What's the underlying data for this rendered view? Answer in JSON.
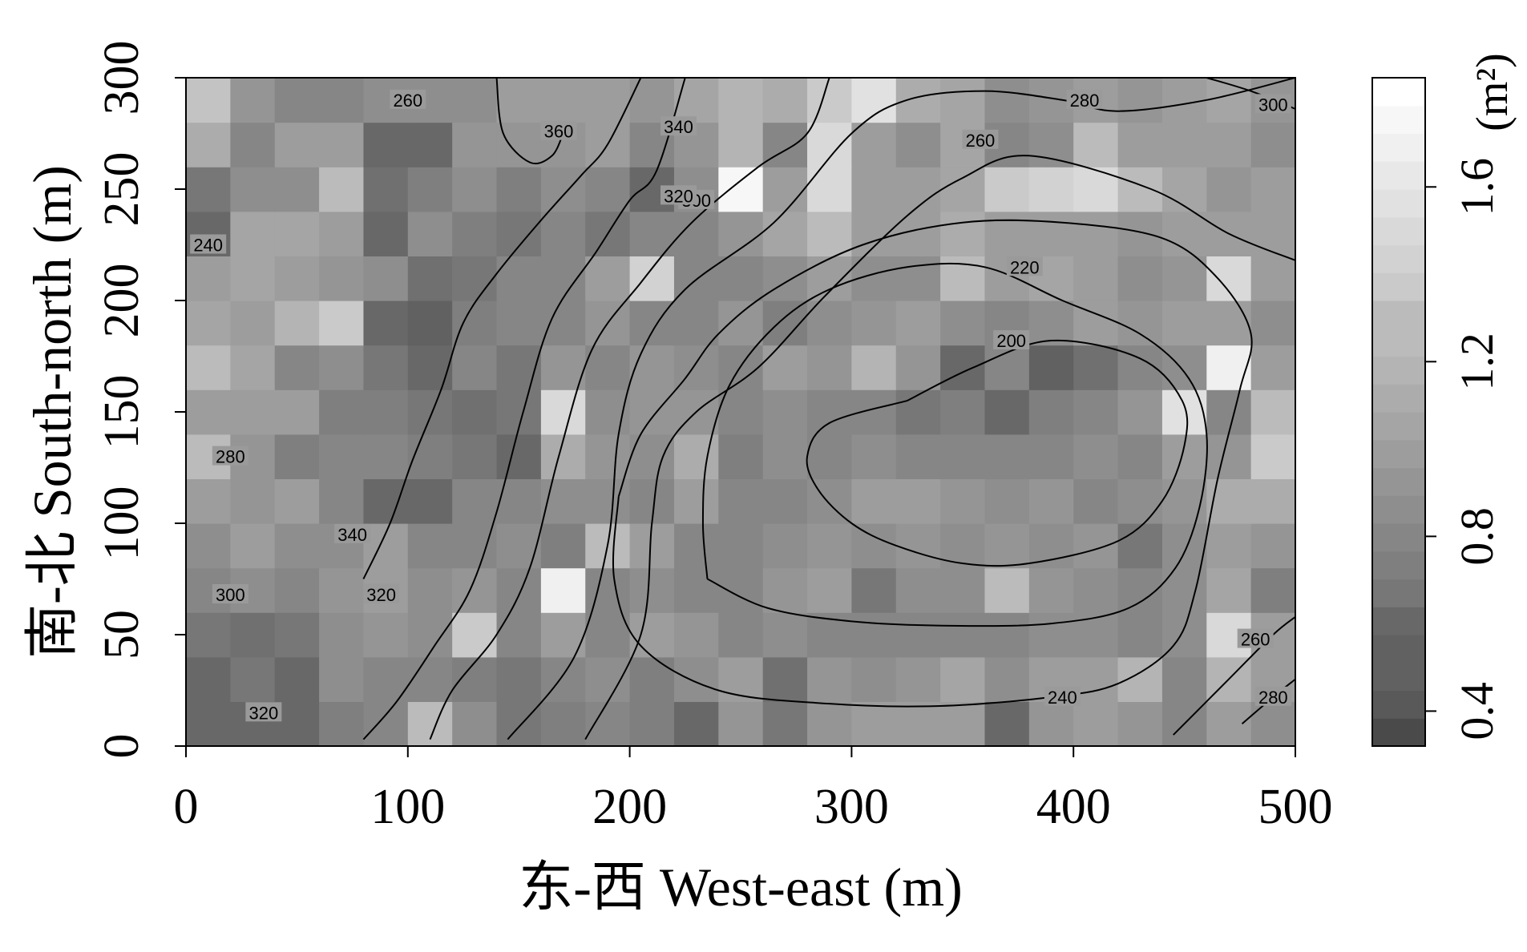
{
  "chart_data": {
    "type": "heatmap",
    "title": "",
    "xlabel": "东-西  West-east (m)",
    "ylabel": "南-北  South-north (m)",
    "xlim": [
      0,
      500
    ],
    "ylim": [
      0,
      300
    ],
    "x_ticks": [
      0,
      100,
      200,
      300,
      400,
      500
    ],
    "y_ticks": [
      0,
      50,
      100,
      150,
      200,
      250,
      300
    ],
    "cell_size_m": 20,
    "colorbar": {
      "label": "(m²)",
      "range": [
        0.32,
        1.85
      ],
      "ticks": [
        0.4,
        0.8,
        1.2,
        1.6
      ],
      "color_low": "#4a4a4a",
      "color_high": "#ffffff"
    },
    "grid_rows_south_to_north": [
      [
        0.6,
        0.55,
        0.55,
        0.75,
        0.8,
        1.3,
        0.9,
        0.7,
        0.75,
        0.8,
        0.75,
        0.6,
        0.95,
        0.7,
        0.95,
        1.05,
        1.0,
        1.0,
        0.55,
        0.95,
        1.0,
        0.95,
        0.85,
        1.0,
        0.9
      ],
      [
        0.55,
        0.7,
        0.55,
        0.9,
        0.8,
        0.85,
        0.75,
        0.7,
        0.8,
        0.9,
        0.75,
        0.9,
        1.0,
        0.65,
        0.95,
        0.9,
        0.95,
        1.1,
        0.9,
        1.05,
        1.05,
        1.2,
        0.85,
        1.2,
        1.0
      ],
      [
        0.7,
        0.65,
        0.7,
        0.9,
        0.95,
        0.9,
        1.4,
        0.85,
        1.0,
        0.85,
        1.05,
        0.95,
        0.8,
        0.9,
        0.8,
        0.85,
        0.8,
        0.85,
        0.85,
        0.9,
        0.9,
        0.8,
        0.9,
        1.5,
        1.05
      ],
      [
        0.85,
        0.9,
        0.85,
        0.95,
        1.0,
        0.9,
        0.95,
        0.8,
        1.75,
        0.85,
        0.9,
        0.85,
        0.8,
        0.95,
        1.0,
        0.7,
        0.9,
        0.9,
        1.3,
        0.95,
        0.9,
        0.85,
        0.9,
        1.1,
        0.75
      ],
      [
        0.9,
        1.0,
        0.9,
        0.9,
        1.0,
        0.85,
        0.85,
        0.9,
        0.75,
        1.25,
        1.0,
        0.85,
        0.8,
        0.9,
        0.95,
        0.9,
        0.95,
        0.9,
        0.95,
        0.9,
        0.95,
        0.7,
        0.9,
        1.0,
        0.95
      ],
      [
        1.0,
        0.95,
        1.0,
        0.8,
        0.55,
        0.6,
        0.8,
        0.85,
        0.9,
        0.9,
        0.85,
        1.0,
        0.85,
        0.8,
        0.9,
        1.05,
        1.0,
        0.95,
        0.9,
        0.95,
        0.85,
        0.9,
        0.95,
        1.15,
        1.15
      ],
      [
        1.25,
        0.95,
        0.75,
        0.8,
        0.8,
        0.75,
        0.7,
        0.6,
        1.15,
        0.95,
        0.9,
        1.15,
        0.75,
        0.9,
        0.85,
        0.9,
        0.8,
        0.85,
        0.8,
        0.8,
        0.9,
        0.85,
        1.05,
        0.95,
        1.4
      ],
      [
        1.0,
        1.0,
        1.05,
        0.75,
        0.75,
        0.7,
        0.65,
        0.7,
        1.55,
        0.9,
        0.95,
        0.95,
        0.85,
        0.9,
        0.85,
        0.8,
        0.7,
        0.75,
        0.55,
        0.75,
        0.85,
        0.95,
        1.6,
        0.85,
        1.25
      ],
      [
        1.3,
        1.1,
        0.85,
        0.9,
        0.7,
        0.6,
        0.85,
        0.7,
        0.95,
        0.85,
        0.95,
        0.9,
        0.85,
        1.0,
        0.95,
        1.2,
        0.95,
        0.6,
        0.8,
        0.5,
        0.65,
        0.85,
        0.9,
        1.7,
        1.0
      ],
      [
        1.1,
        1.0,
        1.2,
        1.4,
        0.6,
        0.5,
        0.75,
        0.8,
        0.85,
        0.95,
        0.85,
        0.8,
        0.95,
        0.75,
        0.9,
        0.95,
        1.0,
        0.9,
        0.85,
        0.9,
        1.05,
        0.95,
        1.0,
        1.05,
        0.9
      ],
      [
        1.05,
        1.1,
        1.0,
        0.95,
        0.9,
        0.65,
        0.7,
        0.8,
        0.85,
        1.05,
        1.45,
        0.85,
        0.85,
        0.9,
        1.0,
        0.9,
        0.9,
        1.25,
        1.05,
        1.1,
        1.0,
        0.9,
        0.95,
        1.55,
        1.0
      ],
      [
        0.6,
        1.1,
        1.1,
        1.05,
        0.6,
        0.9,
        0.75,
        0.7,
        0.85,
        0.7,
        0.8,
        0.8,
        0.95,
        1.1,
        1.25,
        1.05,
        1.05,
        1.15,
        1.0,
        1.0,
        1.0,
        0.95,
        1.0,
        1.0,
        1.05
      ],
      [
        0.7,
        0.9,
        0.9,
        1.3,
        0.65,
        0.75,
        0.9,
        0.75,
        0.9,
        0.8,
        0.6,
        0.9,
        1.8,
        1.05,
        1.55,
        1.0,
        1.0,
        1.1,
        1.4,
        1.45,
        1.5,
        1.25,
        1.1,
        0.95,
        1.05
      ],
      [
        1.15,
        0.8,
        1.0,
        1.0,
        0.6,
        0.6,
        0.95,
        0.95,
        0.95,
        1.0,
        0.85,
        0.95,
        1.2,
        0.85,
        1.55,
        1.05,
        0.9,
        1.1,
        0.85,
        0.9,
        1.3,
        1.0,
        1.05,
        1.0,
        0.9
      ],
      [
        1.35,
        0.95,
        0.85,
        0.85,
        0.9,
        0.9,
        0.9,
        1.05,
        1.0,
        1.05,
        0.95,
        1.1,
        1.2,
        1.15,
        1.4,
        1.6,
        1.15,
        1.1,
        0.9,
        0.95,
        1.05,
        0.95,
        1.0,
        1.1,
        0.95
      ],
      [
        1.5,
        0.85,
        0.85,
        0.9,
        1.3,
        1.25,
        0.9,
        0.85,
        0.9,
        1.2,
        0.9,
        0.85,
        1.1,
        0.9,
        0.9,
        1.8,
        1.1,
        0.9,
        0.95,
        1.0,
        1.05,
        0.9,
        1.1,
        0.95,
        1.0
      ]
    ],
    "contours": [
      {
        "level": 200,
        "label": "200",
        "points": [
          [
            325,
            155
          ],
          [
            355,
            170
          ],
          [
            390,
            182
          ],
          [
            430,
            174
          ],
          [
            449,
            155
          ],
          [
            450,
            135
          ],
          [
            440,
            110
          ],
          [
            420,
            92
          ],
          [
            380,
            82
          ],
          [
            350,
            82
          ],
          [
            320,
            90
          ],
          [
            300,
            100
          ],
          [
            285,
            115
          ],
          [
            280,
            130
          ],
          [
            290,
            145
          ],
          [
            325,
            155
          ]
        ],
        "labels": [
          [
            372,
            182
          ]
        ]
      },
      {
        "level": 220,
        "label": "220",
        "points": [
          [
            235,
            75
          ],
          [
            262,
            62
          ],
          [
            300,
            56
          ],
          [
            345,
            54
          ],
          [
            390,
            55
          ],
          [
            425,
            62
          ],
          [
            446,
            80
          ],
          [
            457,
            108
          ],
          [
            460,
            140
          ],
          [
            452,
            165
          ],
          [
            430,
            185
          ],
          [
            395,
            200
          ],
          [
            360,
            215
          ],
          [
            325,
            215
          ],
          [
            290,
            205
          ],
          [
            265,
            188
          ],
          [
            245,
            162
          ],
          [
            235,
            130
          ],
          [
            233,
            100
          ],
          [
            235,
            75
          ]
        ],
        "labels": [
          [
            378,
            215
          ]
        ]
      },
      {
        "level": 240,
        "label": "240",
        "points": [
          [
            195,
            112
          ],
          [
            193,
            75
          ],
          [
            205,
            45
          ],
          [
            240,
            25
          ],
          [
            290,
            19
          ],
          [
            340,
            18
          ],
          [
            390,
            22
          ],
          [
            420,
            28
          ],
          [
            445,
            45
          ],
          [
            455,
            70
          ],
          [
            465,
            120
          ],
          [
            475,
            160
          ],
          [
            480,
            185
          ],
          [
            465,
            210
          ],
          [
            440,
            228
          ],
          [
            395,
            235
          ],
          [
            350,
            235
          ],
          [
            305,
            225
          ],
          [
            265,
            205
          ],
          [
            240,
            185
          ],
          [
            225,
            165
          ],
          [
            205,
            140
          ],
          [
            195,
            112
          ]
        ],
        "labels": [
          [
            395,
            22
          ]
        ]
      },
      {
        "level": 260,
        "label": "260",
        "points": [
          [
            180,
            3
          ],
          [
            205,
            50
          ],
          [
            210,
            100
          ],
          [
            215,
            130
          ],
          [
            230,
            150
          ],
          [
            258,
            170
          ],
          [
            288,
            202
          ],
          [
            325,
            238
          ],
          [
            350,
            255
          ],
          [
            380,
            265
          ],
          [
            435,
            250
          ],
          [
            470,
            230
          ],
          [
            500,
            218
          ]
        ],
        "labels": [
          [
            358,
            272
          ]
        ]
      },
      {
        "level": 260,
        "label": "260",
        "points": [
          [
            445,
            5
          ],
          [
            470,
            30
          ],
          [
            490,
            50
          ],
          [
            500,
            58
          ]
        ],
        "labels": [
          [
            482,
            48
          ]
        ]
      },
      {
        "level": 280,
        "label": "280",
        "points": [
          [
            145,
            3
          ],
          [
            175,
            40
          ],
          [
            190,
            90
          ],
          [
            195,
            140
          ],
          [
            205,
            176
          ],
          [
            225,
            205
          ],
          [
            265,
            235
          ],
          [
            300,
            275
          ],
          [
            325,
            290
          ],
          [
            360,
            294
          ],
          [
            395,
            290
          ],
          [
            420,
            285
          ],
          [
            460,
            290
          ],
          [
            500,
            300
          ]
        ],
        "labels": [
          [
            405,
            290
          ]
        ]
      },
      {
        "level": 280,
        "label": "280",
        "points": [
          [
            476,
            10
          ],
          [
            490,
            22
          ],
          [
            500,
            30
          ]
        ],
        "labels": [
          [
            490,
            22
          ]
        ]
      },
      {
        "level": 300,
        "label": "300",
        "points": [
          [
            110,
            3
          ],
          [
            120,
            25
          ],
          [
            140,
            50
          ],
          [
            155,
            80
          ],
          [
            168,
            130
          ],
          [
            183,
            178
          ],
          [
            205,
            208
          ],
          [
            228,
            235
          ],
          [
            258,
            260
          ],
          [
            280,
            275
          ],
          [
            290,
            300
          ]
        ],
        "labels": [
          [
            230,
            245
          ]
        ]
      },
      {
        "level": 300,
        "label": "300",
        "points": [
          [
            460,
            300
          ],
          [
            480,
            294
          ],
          [
            500,
            286
          ]
        ],
        "labels": [
          [
            490,
            288
          ]
        ]
      },
      {
        "level": 320,
        "label": "320",
        "points": [
          [
            80,
            3
          ],
          [
            95,
            20
          ],
          [
            112,
            45
          ],
          [
            128,
            70
          ],
          [
            140,
            105
          ],
          [
            152,
            150
          ],
          [
            165,
            192
          ],
          [
            185,
            222
          ],
          [
            200,
            245
          ],
          [
            212,
            258
          ],
          [
            225,
            300
          ]
        ],
        "labels": [
          [
            222,
            247
          ]
        ]
      },
      {
        "level": 340,
        "label": "340",
        "points": [
          [
            80,
            75
          ],
          [
            92,
            100
          ],
          [
            102,
            128
          ],
          [
            115,
            160
          ],
          [
            125,
            190
          ],
          [
            140,
            212
          ],
          [
            160,
            236
          ],
          [
            178,
            256
          ],
          [
            190,
            270
          ],
          [
            205,
            300
          ]
        ],
        "labels": [
          [
            222,
            278
          ]
        ]
      },
      {
        "level": 360,
        "label": "360",
        "points": [
          [
            140,
            300
          ],
          [
            143,
            275
          ],
          [
            155,
            262
          ],
          [
            165,
            265
          ],
          [
            170,
            275
          ]
        ],
        "labels": [
          [
            168,
            276
          ]
        ]
      }
    ],
    "contour_labels_extra": [
      {
        "x": 100,
        "y": 290,
        "text": "260"
      },
      {
        "x": 10,
        "y": 225,
        "text": "240"
      },
      {
        "x": 20,
        "y": 130,
        "text": "280"
      },
      {
        "x": 75,
        "y": 95,
        "text": "340"
      },
      {
        "x": 88,
        "y": 68,
        "text": "320"
      },
      {
        "x": 20,
        "y": 68,
        "text": "300"
      },
      {
        "x": 35,
        "y": 15,
        "text": "320"
      }
    ]
  }
}
